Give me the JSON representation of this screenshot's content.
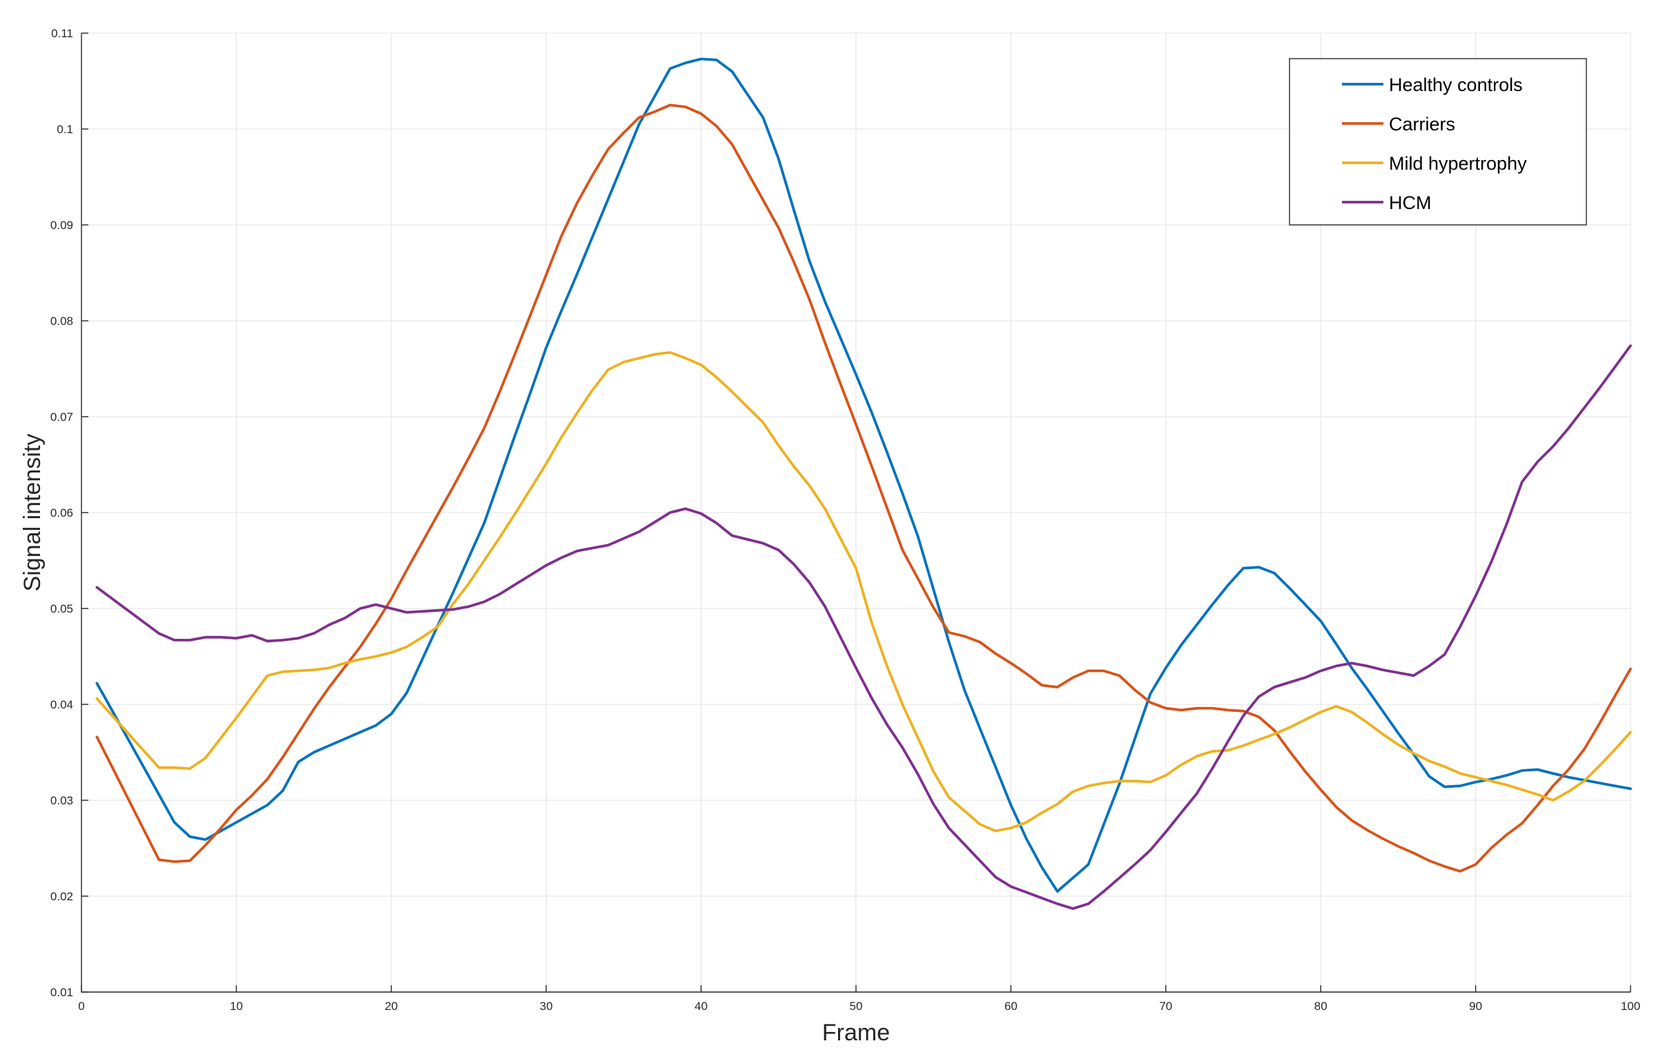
{
  "chart_data": {
    "type": "line",
    "title": "",
    "xlabel": "Frame",
    "ylabel": "Signal intensity",
    "xlim": [
      0,
      100
    ],
    "ylim": [
      0.01,
      0.11
    ],
    "xticks": [
      0,
      10,
      20,
      30,
      40,
      50,
      60,
      70,
      80,
      90,
      100
    ],
    "yticks": [
      0.01,
      0.02,
      0.03,
      0.04,
      0.05,
      0.06,
      0.07,
      0.08,
      0.09,
      0.1,
      0.11
    ],
    "ytick_labels": [
      "0.01",
      "0.02",
      "0.03",
      "0.04",
      "0.05",
      "0.06",
      "0.07",
      "0.08",
      "0.09",
      "0.1",
      "0.11"
    ],
    "grid": true,
    "legend_position": "top-right",
    "x": [
      1,
      2,
      3,
      4,
      5,
      6,
      7,
      8,
      9,
      10,
      11,
      12,
      13,
      14,
      15,
      16,
      17,
      18,
      19,
      20,
      21,
      22,
      23,
      24,
      25,
      26,
      27,
      28,
      29,
      30,
      31,
      32,
      33,
      34,
      35,
      36,
      37,
      38,
      39,
      40,
      41,
      42,
      43,
      44,
      45,
      46,
      47,
      48,
      49,
      50,
      51,
      52,
      53,
      54,
      55,
      56,
      57,
      58,
      59,
      60,
      61,
      62,
      63,
      64,
      65,
      66,
      67,
      68,
      69,
      70,
      71,
      72,
      73,
      74,
      75,
      76,
      77,
      78,
      79,
      80,
      81,
      82,
      83,
      84,
      85,
      86,
      87,
      88,
      89,
      90,
      91,
      92,
      93,
      94,
      95,
      96,
      97,
      98,
      99,
      100
    ],
    "series": [
      {
        "name": "Healthy controls",
        "color": "#0072BD",
        "values": [
          0.0422,
          0.0393,
          0.0364,
          0.0335,
          0.0306,
          0.0277,
          0.0262,
          0.0259,
          0.0268,
          0.0277,
          0.0286,
          0.0295,
          0.031,
          0.034,
          0.035,
          0.0357,
          0.0364,
          0.0371,
          0.0378,
          0.039,
          0.0412,
          0.0447,
          0.0482,
          0.0517,
          0.0553,
          0.0589,
          0.0635,
          0.0681,
          0.0726,
          0.0772,
          0.0811,
          0.0849,
          0.0888,
          0.0927,
          0.0966,
          0.1005,
          0.1034,
          0.1063,
          0.1069,
          0.1073,
          0.1072,
          0.106,
          0.1036,
          0.1012,
          0.0969,
          0.0915,
          0.0862,
          0.082,
          0.0782,
          0.0744,
          0.0705,
          0.0663,
          0.062,
          0.0575,
          0.052,
          0.0465,
          0.0415,
          0.0375,
          0.0335,
          0.0295,
          0.026,
          0.023,
          0.0205,
          0.0219,
          0.0233,
          0.0275,
          0.0317,
          0.0364,
          0.0411,
          0.0438,
          0.0462,
          0.0483,
          0.0504,
          0.0524,
          0.0542,
          0.0543,
          0.0537,
          0.0521,
          0.0504,
          0.0487,
          0.0463,
          0.0438,
          0.0416,
          0.0393,
          0.037,
          0.0348,
          0.0325,
          0.0314,
          0.0315,
          0.0319,
          0.0322,
          0.0326,
          0.0331,
          0.0332,
          0.0328,
          0.0324,
          0.0321,
          0.0318,
          0.0315,
          0.0312
        ]
      },
      {
        "name": "Carriers",
        "color": "#D95319",
        "values": [
          0.0366,
          0.0334,
          0.0302,
          0.027,
          0.0238,
          0.0236,
          0.0237,
          0.0253,
          0.0271,
          0.029,
          0.0305,
          0.0322,
          0.0345,
          0.037,
          0.0395,
          0.0418,
          0.0439,
          0.046,
          0.0484,
          0.051,
          0.054,
          0.0569,
          0.0598,
          0.0627,
          0.0657,
          0.0688,
          0.0726,
          0.0766,
          0.0807,
          0.0848,
          0.0889,
          0.0923,
          0.0952,
          0.0979,
          0.0996,
          0.1012,
          0.1018,
          0.1025,
          0.1023,
          0.1016,
          0.1003,
          0.0984,
          0.0955,
          0.0926,
          0.0897,
          0.0861,
          0.0822,
          0.0777,
          0.0734,
          0.0692,
          0.0649,
          0.0605,
          0.0561,
          0.0531,
          0.0501,
          0.0475,
          0.0471,
          0.0465,
          0.0453,
          0.0443,
          0.0432,
          0.042,
          0.0418,
          0.0428,
          0.0435,
          0.0435,
          0.043,
          0.0415,
          0.0402,
          0.0396,
          0.0394,
          0.0396,
          0.0396,
          0.0394,
          0.0393,
          0.0387,
          0.0373,
          0.0351,
          0.033,
          0.0311,
          0.0293,
          0.0279,
          0.0269,
          0.026,
          0.0252,
          0.0245,
          0.0237,
          0.0231,
          0.0226,
          0.0233,
          0.025,
          0.0264,
          0.0276,
          0.0295,
          0.0315,
          0.0332,
          0.0353,
          0.038,
          0.0409,
          0.0437
        ]
      },
      {
        "name": "Mild hypertrophy",
        "color": "#EDB120",
        "values": [
          0.0406,
          0.0388,
          0.037,
          0.0352,
          0.0334,
          0.0334,
          0.0333,
          0.0344,
          0.0365,
          0.0386,
          0.0408,
          0.043,
          0.0434,
          0.0435,
          0.0436,
          0.0438,
          0.0443,
          0.0447,
          0.045,
          0.0454,
          0.046,
          0.047,
          0.0481,
          0.0505,
          0.0526,
          0.055,
          0.0574,
          0.0599,
          0.0625,
          0.0651,
          0.0679,
          0.0704,
          0.0728,
          0.0749,
          0.0757,
          0.0761,
          0.0765,
          0.0767,
          0.0761,
          0.0754,
          0.0741,
          0.0726,
          0.071,
          0.0694,
          0.067,
          0.0648,
          0.0628,
          0.0604,
          0.0573,
          0.0542,
          0.0486,
          0.044,
          0.04,
          0.0365,
          0.033,
          0.0303,
          0.0289,
          0.0275,
          0.0268,
          0.0271,
          0.0277,
          0.0287,
          0.0296,
          0.0309,
          0.0315,
          0.0318,
          0.032,
          0.032,
          0.0319,
          0.0326,
          0.0337,
          0.0346,
          0.0351,
          0.0352,
          0.0357,
          0.0363,
          0.0369,
          0.0376,
          0.0384,
          0.0392,
          0.0398,
          0.0392,
          0.0381,
          0.0369,
          0.0358,
          0.0349,
          0.0341,
          0.0335,
          0.0328,
          0.0324,
          0.032,
          0.0316,
          0.0311,
          0.0306,
          0.03,
          0.0309,
          0.032,
          0.0336,
          0.0353,
          0.0371
        ]
      },
      {
        "name": "HCM",
        "color": "#7E2F8E",
        "values": [
          0.0522,
          0.051,
          0.0498,
          0.0486,
          0.0474,
          0.0467,
          0.0467,
          0.047,
          0.047,
          0.0469,
          0.0472,
          0.0466,
          0.0467,
          0.0469,
          0.0474,
          0.0483,
          0.049,
          0.05,
          0.0504,
          0.05,
          0.0496,
          0.0497,
          0.0498,
          0.0499,
          0.0502,
          0.0507,
          0.0515,
          0.0525,
          0.0535,
          0.0545,
          0.0553,
          0.056,
          0.0563,
          0.0566,
          0.0573,
          0.058,
          0.059,
          0.06,
          0.0604,
          0.0599,
          0.0589,
          0.0576,
          0.0572,
          0.0568,
          0.0561,
          0.0546,
          0.0527,
          0.0502,
          0.047,
          0.0438,
          0.0407,
          0.0379,
          0.0355,
          0.0327,
          0.0296,
          0.0271,
          0.0254,
          0.0237,
          0.022,
          0.021,
          0.0204,
          0.0198,
          0.0192,
          0.0187,
          0.0192,
          0.0205,
          0.0219,
          0.0233,
          0.0248,
          0.0267,
          0.0287,
          0.0307,
          0.0333,
          0.0361,
          0.0388,
          0.0408,
          0.0418,
          0.0423,
          0.0428,
          0.0435,
          0.044,
          0.0443,
          0.044,
          0.0436,
          0.0433,
          0.043,
          0.044,
          0.0452,
          0.0481,
          0.0513,
          0.0548,
          0.0588,
          0.0632,
          0.0653,
          0.0669,
          0.0688,
          0.0709,
          0.073,
          0.0752,
          0.0774
        ]
      }
    ]
  }
}
